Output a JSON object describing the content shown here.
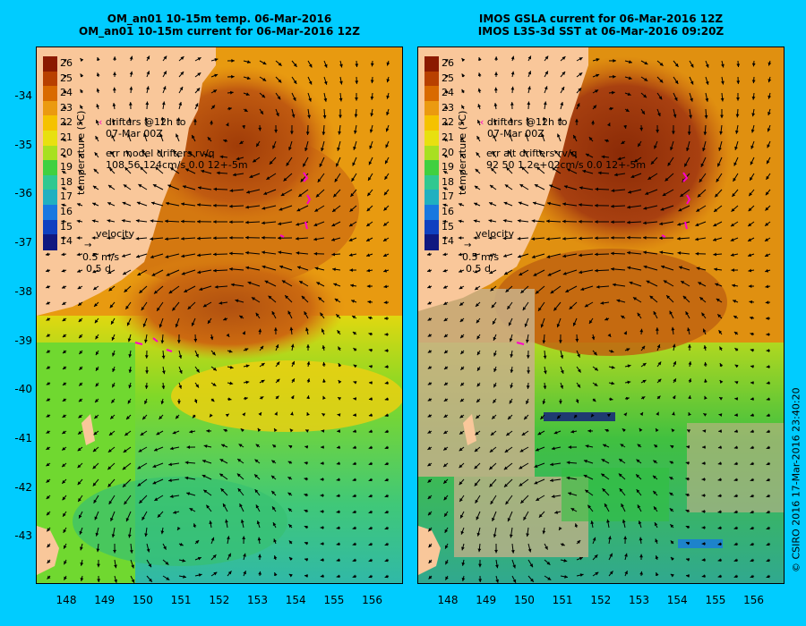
{
  "left_panel": {
    "title_line1": "OM_an01 10-15m temp. 06-Mar-2016",
    "title_line2": "OM_an01 10-15m current for 06-Mar-2016 12Z",
    "drifters_line1": "drifters @12h to",
    "drifters_line2": "07-Mar 00Z",
    "err_line1": "err model drifters rv/q",
    "err_line2": "108 56 124cm/s 0.0 12+-5m"
  },
  "right_panel": {
    "title_line1": "IMOS GSLA current for 06-Mar-2016 12Z",
    "title_line2": "IMOS L3S-3d SST at 06-Mar-2016 09:20Z",
    "drifters_line1": "drifters @12h to",
    "drifters_line2": "07-Mar 00Z",
    "err_line1": "err alt drifters rv/q",
    "err_line2": "92 50 1.2e+02cm/s 0.0 12+-5m"
  },
  "velocity_legend": {
    "label": "velocity",
    "speed": "0.5 m/s",
    "time": "0.5 d"
  },
  "colorbar": {
    "title": "temperature (°C)",
    "ticks": [
      "26",
      "25",
      "24",
      "23",
      "22",
      "21",
      "20",
      "19",
      "18",
      "17",
      "16",
      "15",
      "14"
    ],
    "colors": [
      "#8b1a00",
      "#b84000",
      "#d96a00",
      "#eb9a10",
      "#f5c200",
      "#e8e010",
      "#a8e020",
      "#40d040",
      "#30c890",
      "#20b0c0",
      "#1878e0",
      "#1040c0",
      "#101880"
    ]
  },
  "latitude_labels": [
    "-34",
    "-35",
    "-36",
    "-37",
    "-38",
    "-39",
    "-40",
    "-41",
    "-42",
    "-43"
  ],
  "longitude_labels": [
    "148",
    "149",
    "150",
    "151",
    "152",
    "153",
    "154",
    "155",
    "156"
  ],
  "copyright": "© CSIRO 2016   17-Mar-2016 23:40:20",
  "colors": {
    "background": "#00ccff",
    "land": "#f9c79a",
    "warm_core": "#b84a10",
    "drifter": "#ff00cc"
  }
}
